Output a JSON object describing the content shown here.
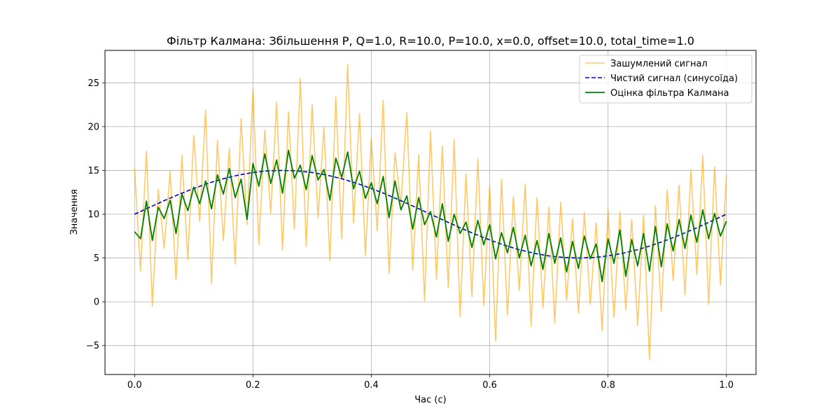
{
  "chart_data": {
    "type": "line",
    "title": "Фільтр Калмана: Збільшення P, Q=1.0, R=10.0, P=10.0, x=0.0, offset=10.0, total_time=1.0",
    "xlabel": "Час (с)",
    "ylabel": "Значення",
    "xlim": [
      -0.05,
      1.05
    ],
    "ylim": [
      -8.3,
      28.7
    ],
    "xticks": [
      0.0,
      0.2,
      0.4,
      0.6,
      0.8,
      1.0
    ],
    "xtick_labels": [
      "0.0",
      "0.2",
      "0.4",
      "0.6",
      "0.8",
      "1.0"
    ],
    "yticks": [
      -5,
      0,
      5,
      10,
      15,
      20,
      25
    ],
    "ytick_labels": [
      "−5",
      "0",
      "5",
      "10",
      "15",
      "20",
      "25"
    ],
    "grid": true,
    "legend_position": "top-right",
    "series": [
      {
        "name": "Зашумлений сигнал",
        "color": "#FFA500",
        "style": "solid",
        "opacity": 0.6,
        "x": [
          0.0,
          0.01,
          0.02,
          0.03,
          0.04,
          0.05,
          0.06,
          0.07,
          0.08,
          0.09,
          0.1,
          0.11,
          0.12,
          0.13,
          0.14,
          0.15,
          0.16,
          0.17,
          0.18,
          0.19,
          0.2,
          0.21,
          0.22,
          0.23,
          0.24,
          0.25,
          0.26,
          0.27,
          0.28,
          0.29,
          0.3,
          0.31,
          0.32,
          0.33,
          0.34,
          0.35,
          0.36,
          0.37,
          0.38,
          0.39,
          0.4,
          0.41,
          0.42,
          0.43,
          0.44,
          0.45,
          0.46,
          0.47,
          0.48,
          0.49,
          0.5,
          0.51,
          0.52,
          0.53,
          0.54,
          0.55,
          0.56,
          0.57,
          0.58,
          0.59,
          0.6,
          0.61,
          0.62,
          0.63,
          0.64,
          0.65,
          0.66,
          0.67,
          0.68,
          0.69,
          0.7,
          0.71,
          0.72,
          0.73,
          0.74,
          0.75,
          0.76,
          0.77,
          0.78,
          0.79,
          0.8,
          0.81,
          0.82,
          0.83,
          0.84,
          0.85,
          0.86,
          0.87,
          0.88,
          0.89,
          0.9,
          0.91,
          0.92,
          0.93,
          0.94,
          0.95,
          0.96,
          0.97,
          0.98,
          0.99,
          1.0
        ],
        "values": [
          15.3,
          3.5,
          17.2,
          -0.5,
          12.8,
          6.1,
          14.9,
          2.5,
          16.7,
          4.8,
          19.0,
          9.2,
          21.9,
          2.1,
          18.4,
          7.0,
          17.5,
          4.3,
          20.9,
          8.8,
          24.3,
          6.5,
          19.6,
          10.1,
          22.8,
          5.9,
          21.7,
          8.3,
          25.5,
          6.3,
          22.5,
          9.6,
          19.9,
          4.7,
          23.4,
          7.2,
          27.1,
          9.0,
          21.5,
          5.3,
          18.7,
          8.1,
          23.0,
          3.2,
          17.0,
          11.1,
          21.6,
          3.6,
          16.8,
          0.1,
          19.5,
          2.6,
          17.8,
          1.6,
          18.5,
          -1.7,
          14.6,
          0.6,
          16.3,
          -0.4,
          13.2,
          -4.5,
          14.0,
          -1.5,
          12.0,
          1.3,
          13.4,
          -2.8,
          11.9,
          -0.7,
          10.8,
          -2.4,
          11.4,
          0.2,
          9.5,
          -1.3,
          10.2,
          -0.3,
          9.0,
          -3.3,
          10.5,
          -1.8,
          10.3,
          -0.9,
          9.4,
          -2.7,
          9.9,
          -6.6,
          11.0,
          -1.1,
          12.8,
          2.4,
          13.3,
          0.8,
          15.1,
          3.1,
          16.7,
          -0.3,
          15.4,
          1.9,
          14.5
        ]
      },
      {
        "name": "Чистий сигнал (синусоїда)",
        "color": "#0000CD",
        "style": "dashed",
        "x": [
          0.0,
          0.025,
          0.05,
          0.075,
          0.1,
          0.125,
          0.15,
          0.175,
          0.2,
          0.225,
          0.25,
          0.275,
          0.3,
          0.325,
          0.35,
          0.375,
          0.4,
          0.425,
          0.45,
          0.475,
          0.5,
          0.525,
          0.55,
          0.575,
          0.6,
          0.625,
          0.65,
          0.675,
          0.7,
          0.725,
          0.75,
          0.775,
          0.8,
          0.825,
          0.85,
          0.875,
          0.9,
          0.925,
          0.95,
          0.975,
          1.0
        ],
        "values": [
          10.0,
          10.78,
          11.55,
          12.27,
          12.94,
          13.54,
          14.05,
          14.46,
          14.76,
          14.94,
          15.0,
          14.94,
          14.76,
          14.46,
          14.05,
          13.54,
          12.94,
          12.27,
          11.55,
          10.78,
          10.0,
          9.22,
          8.45,
          7.73,
          7.06,
          6.46,
          5.95,
          5.54,
          5.24,
          5.06,
          5.0,
          5.06,
          5.24,
          5.54,
          5.95,
          6.46,
          7.06,
          7.73,
          8.45,
          9.22,
          10.0
        ]
      },
      {
        "name": "Оцінка фільтра Калмана",
        "color": "#008000",
        "style": "solid",
        "x": [
          0.0,
          0.01,
          0.02,
          0.03,
          0.04,
          0.05,
          0.06,
          0.07,
          0.08,
          0.09,
          0.1,
          0.11,
          0.12,
          0.13,
          0.14,
          0.15,
          0.16,
          0.17,
          0.18,
          0.19,
          0.2,
          0.21,
          0.22,
          0.23,
          0.24,
          0.25,
          0.26,
          0.27,
          0.28,
          0.29,
          0.3,
          0.31,
          0.32,
          0.33,
          0.34,
          0.35,
          0.36,
          0.37,
          0.38,
          0.39,
          0.4,
          0.41,
          0.42,
          0.43,
          0.44,
          0.45,
          0.46,
          0.47,
          0.48,
          0.49,
          0.5,
          0.51,
          0.52,
          0.53,
          0.54,
          0.55,
          0.56,
          0.57,
          0.58,
          0.59,
          0.6,
          0.61,
          0.62,
          0.63,
          0.64,
          0.65,
          0.66,
          0.67,
          0.68,
          0.69,
          0.7,
          0.71,
          0.72,
          0.73,
          0.74,
          0.75,
          0.76,
          0.77,
          0.78,
          0.79,
          0.8,
          0.81,
          0.82,
          0.83,
          0.84,
          0.85,
          0.86,
          0.87,
          0.88,
          0.89,
          0.9,
          0.91,
          0.92,
          0.93,
          0.94,
          0.95,
          0.96,
          0.97,
          0.98,
          0.99,
          1.0
        ],
        "values": [
          8.0,
          7.2,
          11.5,
          7.0,
          10.8,
          9.5,
          11.6,
          7.8,
          12.3,
          10.4,
          13.1,
          11.2,
          13.8,
          10.6,
          14.5,
          12.3,
          15.2,
          11.9,
          14.0,
          9.4,
          15.8,
          13.2,
          16.9,
          13.5,
          16.2,
          12.4,
          17.3,
          14.1,
          15.6,
          12.8,
          16.7,
          13.9,
          15.1,
          11.6,
          16.4,
          14.2,
          17.1,
          12.9,
          14.9,
          11.8,
          13.6,
          11.2,
          14.3,
          9.6,
          13.8,
          10.5,
          12.1,
          8.3,
          11.9,
          8.8,
          10.3,
          7.4,
          11.2,
          6.9,
          10.0,
          7.8,
          9.1,
          6.2,
          9.3,
          6.5,
          8.8,
          4.9,
          7.9,
          5.6,
          8.5,
          5.0,
          7.6,
          4.1,
          7.0,
          3.7,
          7.8,
          4.4,
          7.3,
          3.4,
          6.9,
          3.8,
          7.5,
          4.9,
          6.6,
          2.3,
          7.2,
          4.4,
          8.2,
          2.9,
          7.1,
          4.1,
          7.8,
          3.5,
          8.6,
          4.0,
          8.9,
          5.8,
          9.4,
          6.1,
          9.9,
          6.8,
          10.5,
          7.2,
          10.1,
          7.5,
          9.2
        ]
      }
    ]
  }
}
